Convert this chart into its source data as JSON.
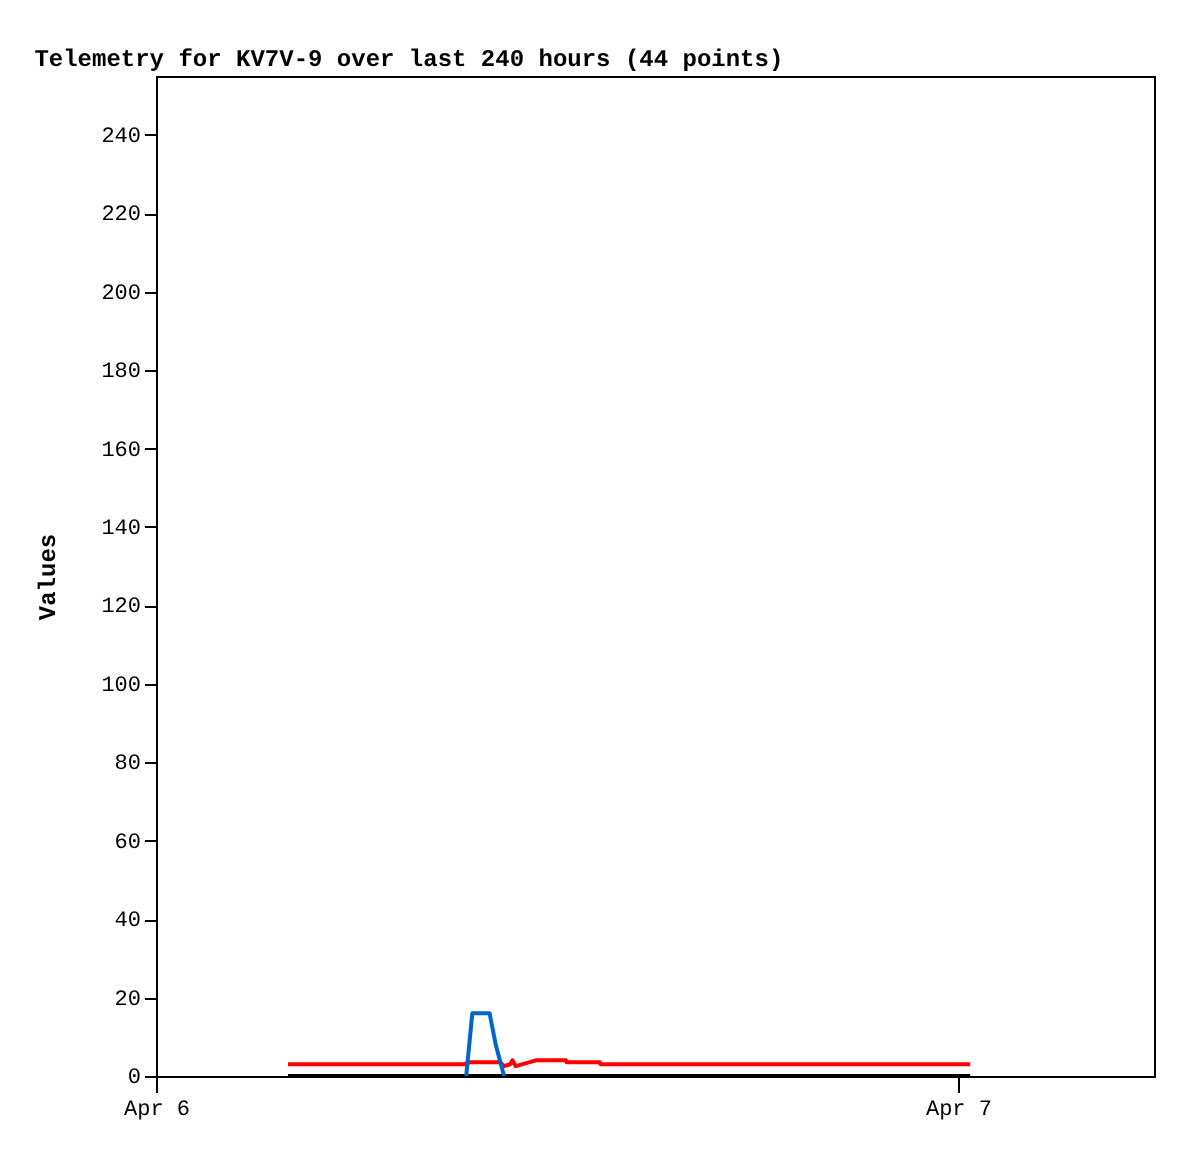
{
  "chart_data": {
    "type": "line",
    "title": "Telemetry for KV7V-9 over last 240 hours (44 points)",
    "ylabel": "Values",
    "xlim": [
      "--04-06T00:00",
      "--04-07T05:52"
    ],
    "xticks": [
      {
        "value": "--04-06",
        "label": "Apr 6"
      },
      {
        "value": "--04-07",
        "label": "Apr 7"
      }
    ],
    "ylim": [
      0,
      255
    ],
    "yticks": [
      0,
      20,
      40,
      60,
      80,
      100,
      120,
      140,
      160,
      180,
      200,
      220,
      240
    ],
    "grid": false,
    "legend": false,
    "series": [
      {
        "color": "#000000",
        "x": [
          "--04-06T03:57",
          "--04-07T00:22"
        ],
        "values": [
          0,
          0
        ]
      },
      {
        "color": "#ff0000",
        "x": [
          "--04-06T03:57",
          "--04-06T09:13",
          "--04-06T09:24",
          "--04-06T10:18",
          "--04-06T10:25",
          "--04-06T10:36",
          "--04-06T10:40",
          "--04-06T10:46",
          "--04-06T11:22",
          "--04-06T12:16",
          "--04-06T12:17",
          "--04-06T13:17",
          "--04-06T13:18",
          "--04-07T00:22"
        ],
        "values": [
          3,
          3,
          3.5,
          3.5,
          2.5,
          3,
          4,
          2.5,
          4,
          4,
          3.5,
          3.5,
          3,
          3
        ]
      },
      {
        "color": "#0066cc",
        "x": [
          "--04-06T09:17",
          "--04-06T09:28",
          "--04-06T09:59",
          "--04-06T10:10",
          "--04-06T10:25"
        ],
        "values": [
          0,
          16,
          16,
          8,
          0
        ]
      }
    ]
  }
}
